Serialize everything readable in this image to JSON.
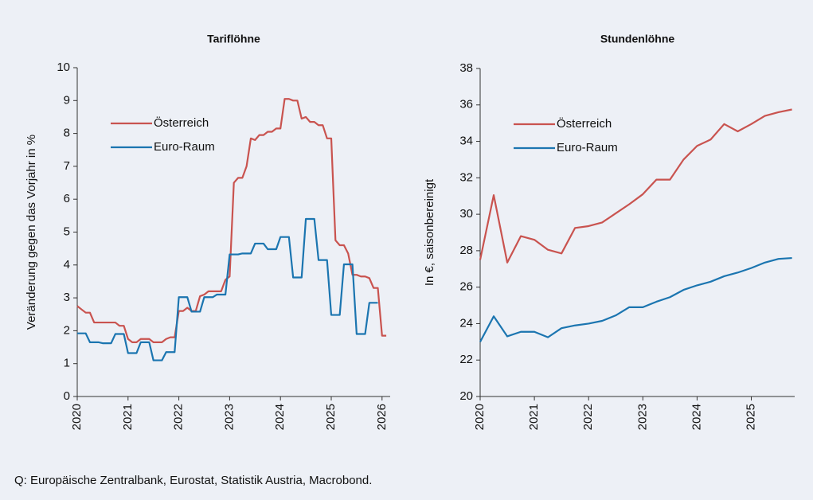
{
  "chart_data": [
    {
      "type": "line",
      "title": "Tariflöhne",
      "ylabel": "Veränderung gegen das Vorjahr in %",
      "x": [
        2020,
        2020.083,
        2020.167,
        2020.25,
        2020.333,
        2020.417,
        2020.5,
        2020.583,
        2020.667,
        2020.75,
        2020.833,
        2020.917,
        2021,
        2021.083,
        2021.167,
        2021.25,
        2021.333,
        2021.417,
        2021.5,
        2021.583,
        2021.667,
        2021.75,
        2021.833,
        2021.917,
        2022,
        2022.083,
        2022.167,
        2022.25,
        2022.333,
        2022.417,
        2022.5,
        2022.583,
        2022.667,
        2022.75,
        2022.833,
        2022.917,
        2023,
        2023.083,
        2023.167,
        2023.25,
        2023.333,
        2023.417,
        2023.5,
        2023.583,
        2023.667,
        2023.75,
        2023.833,
        2023.917,
        2024,
        2024.083,
        2024.167,
        2024.25,
        2024.333,
        2024.417,
        2024.5,
        2024.583,
        2024.667,
        2024.75,
        2024.833,
        2024.917,
        2025,
        2025.083,
        2025.167,
        2025.25,
        2025.333,
        2025.417,
        2025.5,
        2025.583,
        2025.667,
        2025.75,
        2025.833,
        2025.917,
        2026,
        2026.083
      ],
      "series": [
        {
          "name": "Österreich",
          "color": "#c9534f",
          "values": [
            2.75,
            2.65,
            2.55,
            2.55,
            2.25,
            2.25,
            2.25,
            2.25,
            2.25,
            2.25,
            2.15,
            2.15,
            1.75,
            1.65,
            1.65,
            1.75,
            1.75,
            1.75,
            1.65,
            1.65,
            1.65,
            1.75,
            1.8,
            1.8,
            2.6,
            2.6,
            2.7,
            2.6,
            2.6,
            3.05,
            3.1,
            3.2,
            3.2,
            3.2,
            3.2,
            3.55,
            3.65,
            6.5,
            6.65,
            6.65,
            7.0,
            7.85,
            7.8,
            7.95,
            7.95,
            8.05,
            8.05,
            8.15,
            8.15,
            9.05,
            9.05,
            9.0,
            9.0,
            8.45,
            8.5,
            8.35,
            8.35,
            8.25,
            8.25,
            7.85,
            7.85,
            4.75,
            4.6,
            4.6,
            4.35,
            3.7,
            3.7,
            3.65,
            3.65,
            3.6,
            3.3,
            3.3,
            1.85,
            1.85
          ]
        },
        {
          "name": "Euro-Raum",
          "color": "#1b75b0",
          "values": [
            1.92,
            1.92,
            1.92,
            1.65,
            1.65,
            1.65,
            1.62,
            1.62,
            1.62,
            1.9,
            1.9,
            1.9,
            1.32,
            1.32,
            1.32,
            1.65,
            1.65,
            1.65,
            1.1,
            1.1,
            1.1,
            1.35,
            1.35,
            1.35,
            3.02,
            3.02,
            3.02,
            2.58,
            2.58,
            2.58,
            3.02,
            3.02,
            3.02,
            3.1,
            3.1,
            3.1,
            4.32,
            4.32,
            4.32,
            4.35,
            4.35,
            4.35,
            4.65,
            4.65,
            4.65,
            4.48,
            4.48,
            4.48,
            4.85,
            4.85,
            4.85,
            3.62,
            3.62,
            3.62,
            5.4,
            5.4,
            5.4,
            4.15,
            4.15,
            4.15,
            2.48,
            2.48,
            2.48,
            4.02,
            4.02,
            4.02,
            1.9,
            1.9,
            1.9,
            2.85,
            2.85,
            2.85,
            null,
            null
          ]
        }
      ],
      "xlim": [
        2020,
        2026.16
      ],
      "xticks": [
        2020,
        2021,
        2022,
        2023,
        2024,
        2025,
        2026
      ],
      "ylim": [
        0,
        10
      ],
      "yticks": [
        0,
        1,
        2,
        3,
        4,
        5,
        6,
        7,
        8,
        9,
        10
      ],
      "grid": false,
      "legend": "upper left"
    },
    {
      "type": "line",
      "title": "Stundenlöhne",
      "ylabel": "In €, saisonbereinigt",
      "x": [
        2020,
        2020.25,
        2020.5,
        2020.75,
        2021,
        2021.25,
        2021.5,
        2021.75,
        2022,
        2022.25,
        2022.5,
        2022.75,
        2023,
        2023.25,
        2023.5,
        2023.75,
        2024,
        2024.25,
        2024.5,
        2024.75,
        2025,
        2025.25,
        2025.5,
        2025.75
      ],
      "series": [
        {
          "name": "Österreich",
          "color": "#c9534f",
          "values": [
            27.5,
            31.05,
            27.35,
            28.8,
            28.6,
            28.05,
            27.85,
            29.25,
            29.35,
            29.55,
            30.05,
            30.55,
            31.1,
            31.9,
            31.9,
            33.0,
            33.75,
            34.1,
            34.95,
            34.55,
            34.95,
            35.4,
            35.6,
            35.75
          ]
        },
        {
          "name": "Euro-Raum",
          "color": "#1b75b0",
          "values": [
            23.0,
            24.4,
            23.3,
            23.55,
            23.55,
            23.25,
            23.75,
            23.9,
            24.0,
            24.15,
            24.45,
            24.9,
            24.9,
            25.2,
            25.45,
            25.85,
            26.1,
            26.3,
            26.6,
            26.8,
            27.05,
            27.35,
            27.55,
            27.6
          ]
        }
      ],
      "xlim": [
        2020,
        2025.8
      ],
      "xticks": [
        2020,
        2021,
        2022,
        2023,
        2024,
        2025
      ],
      "ylim": [
        20,
        38
      ],
      "yticks": [
        20,
        22,
        24,
        26,
        28,
        30,
        32,
        34,
        36,
        38
      ],
      "grid": false,
      "legend": "upper left"
    }
  ],
  "source": "Q: Europäische Zentralbank, Eurostat, Statistik Austria, Macrobond."
}
